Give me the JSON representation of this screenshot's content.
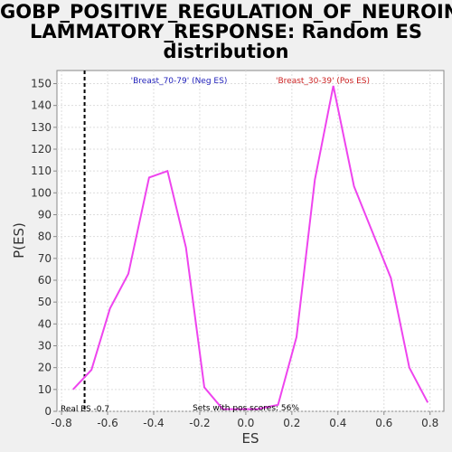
{
  "chart_data": {
    "type": "line",
    "title_lines": [
      "GOBP_POSITIVE_REGULATION_OF_NEUROINF",
      "LAMMATORY_RESPONSE: Random ES",
      "distribution"
    ],
    "xlabel": "ES",
    "ylabel": "P(ES)",
    "xlim": [
      -0.82,
      0.86
    ],
    "ylim": [
      0,
      156
    ],
    "x_ticks": [
      "-0.8",
      "-0.6",
      "-0.4",
      "-0.2",
      "0.0",
      "0.2",
      "0.4",
      "0.6",
      "0.8"
    ],
    "x_tick_values": [
      -0.8,
      -0.6,
      -0.4,
      -0.2,
      0.0,
      0.2,
      0.4,
      0.6,
      0.8
    ],
    "y_ticks": [
      "0",
      "10",
      "20",
      "30",
      "40",
      "50",
      "60",
      "70",
      "80",
      "90",
      "100",
      "110",
      "120",
      "130",
      "140",
      "150"
    ],
    "y_tick_values": [
      0,
      10,
      20,
      30,
      40,
      50,
      60,
      70,
      80,
      90,
      100,
      110,
      120,
      130,
      140,
      150
    ],
    "grid": true,
    "series": [
      {
        "color": "#ee44ee",
        "x": [
          -0.75,
          -0.67,
          -0.59,
          -0.51,
          -0.42,
          -0.34,
          -0.26,
          -0.18,
          -0.1,
          0.05,
          0.14,
          0.22,
          0.3,
          0.38,
          0.47,
          0.55,
          0.63,
          0.71,
          0.79
        ],
        "y": [
          10,
          19,
          47,
          63,
          107,
          110,
          75,
          11,
          1,
          1,
          3,
          34,
          106,
          149,
          103,
          82,
          61,
          20,
          4
        ]
      }
    ],
    "real_es": -0.7,
    "annotations": {
      "neg_label": "'Breast_70-79' (Neg ES)",
      "pos_label": "'Breast_30-39' (Pos ES)",
      "real_es_label": "Real ES -0.7",
      "pos_scores_label": "Sets with pos scores: 56%"
    },
    "colors": {
      "neg_label": "#2222bb",
      "pos_label": "#cc2222",
      "real_es_line": "#000000",
      "grid": "#dddddd",
      "plot_bg": "#ffffff"
    }
  }
}
